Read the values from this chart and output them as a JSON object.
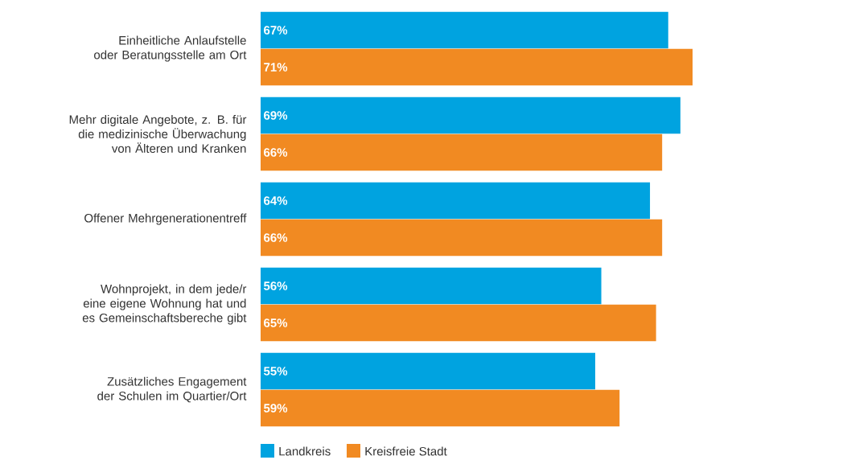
{
  "chart_data": {
    "type": "bar",
    "orientation": "horizontal",
    "categories": [
      "Einheitliche Anlaufstelle oder Beratungsstelle am Ort",
      "Mehr digitale Angebote, z. B. für die medizinische Überwachung von Älteren und Kranken",
      "Offener Mehrgenerationentreff",
      "Wohnprojekt, in dem jede/r eine eigene Wohnung hat und es Gemeinschaftsbereche gibt",
      "Zusätzliches Engagement der Schulen im Quartier/Ort"
    ],
    "series": [
      {
        "name": "Landkreis",
        "color": "#00a3e0",
        "values": [
          67,
          69,
          64,
          56,
          55
        ],
        "value_labels": [
          "67%",
          "69%",
          "64%",
          "56%",
          "55%"
        ]
      },
      {
        "name": "Kreisfreie Stadt",
        "color": "#f18a22",
        "values": [
          71,
          66,
          66,
          65,
          59
        ],
        "value_labels": [
          "71%",
          "66%",
          "66%",
          "65%",
          "59%"
        ]
      }
    ],
    "legend": "bottom"
  }
}
